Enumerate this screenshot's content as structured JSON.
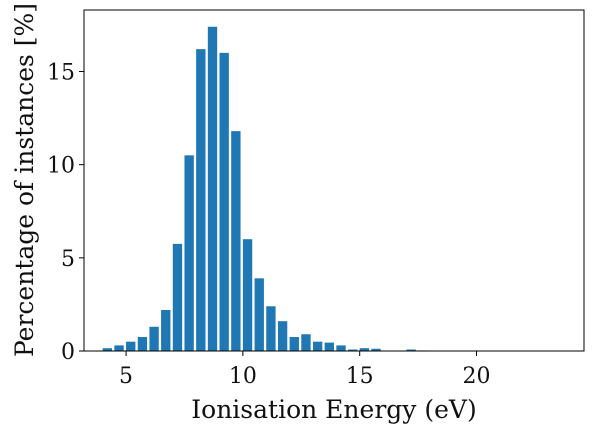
{
  "chart_data": {
    "type": "bar",
    "xlabel": "Ionisation Energy (eV)",
    "ylabel": "Percentage of instances [%]",
    "xlim": [
      3.2,
      24.6
    ],
    "ylim": [
      0,
      18.3
    ],
    "x_ticks": [
      5,
      10,
      15,
      20
    ],
    "y_ticks": [
      0,
      5,
      10,
      15
    ],
    "bar_width": 0.4,
    "grid": false,
    "legend": "none",
    "bar_color": "#1f77b4",
    "x": [
      4.2,
      4.7,
      5.2,
      5.7,
      6.2,
      6.7,
      7.2,
      7.7,
      8.2,
      8.7,
      9.2,
      9.7,
      10.2,
      10.7,
      11.2,
      11.7,
      12.2,
      12.7,
      13.2,
      13.7,
      14.2,
      14.7,
      15.2,
      15.7,
      16.2,
      16.7,
      17.2,
      17.7,
      18.2,
      18.7,
      19.2,
      19.7,
      20.2,
      20.7,
      21.2,
      21.7,
      22.2,
      22.7,
      23.2
    ],
    "values": [
      0.15,
      0.3,
      0.5,
      0.75,
      1.3,
      2.2,
      5.75,
      10.5,
      16.2,
      17.4,
      16.0,
      11.8,
      6.0,
      3.9,
      2.4,
      1.6,
      0.75,
      0.9,
      0.5,
      0.45,
      0.3,
      0.08,
      0.15,
      0.12,
      0.02,
      0.02,
      0.08,
      0.03,
      0.02,
      0.01,
      0.01,
      0.01,
      0.01,
      0.01,
      0.01,
      0.01,
      0.01,
      0.01,
      0.01
    ]
  }
}
